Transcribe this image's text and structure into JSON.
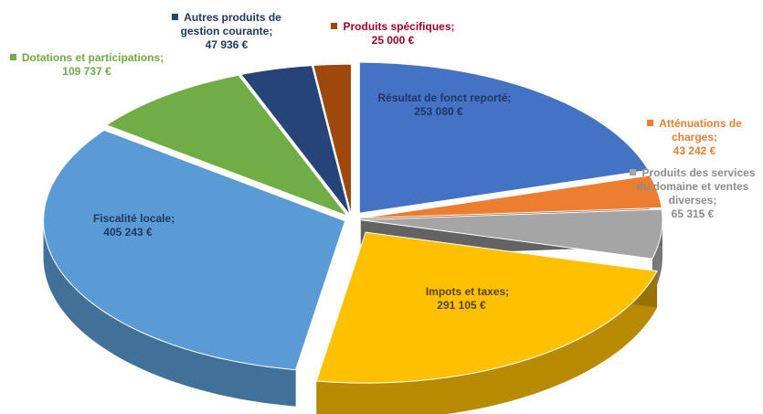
{
  "chart_data": {
    "type": "pie",
    "categories": [
      "Résultat de fonct reporté;",
      "Atténuations de charges;",
      "Produits des services du domaine et ventes diverses;",
      "Impots et taxes;",
      "Fiscalité locale;",
      "Dotations et participations;",
      "Autres produits de gestion courante;",
      "Produits spécifiques;"
    ],
    "values": [
      253080,
      43242,
      65315,
      291105,
      405243,
      109737,
      47936,
      25000
    ],
    "value_labels": [
      "253 080 €",
      "43 242 €",
      "65 315 €",
      "291 105 €",
      "405 243 €",
      "109 737 €",
      "47 936 €",
      "25 000 €"
    ],
    "colors": [
      "#4472c4",
      "#ed7d31",
      "#a5a5a5",
      "#ffc000",
      "#5b9bd5",
      "#70ad47",
      "#264478",
      "#9e480e"
    ],
    "label_colors": [
      "#1f3864",
      "#ed7d31",
      "#8c8c8c",
      "#5a4400",
      "#1f3864",
      "#70ad47",
      "#1f3864",
      "#a50021"
    ]
  }
}
